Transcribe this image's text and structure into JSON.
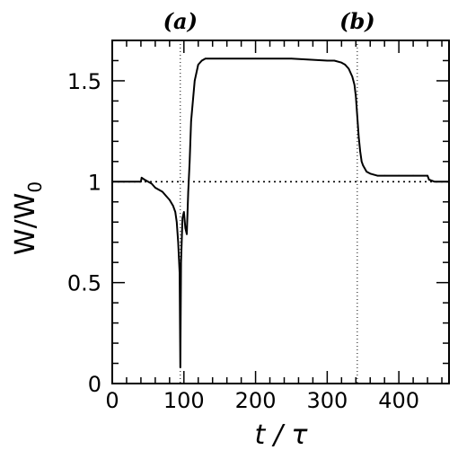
{
  "chart_data": {
    "type": "line",
    "title": "",
    "xlabel": "t / τ",
    "ylabel": "W/W0",
    "ylabel_main": "W/W",
    "ylabel_sub": "0",
    "xlim": [
      0,
      470
    ],
    "ylim": [
      0,
      1.7
    ],
    "x_ticks": [
      0,
      100,
      200,
      300,
      400
    ],
    "x_tick_labels": [
      "0",
      "100",
      "200",
      "300",
      "400"
    ],
    "y_ticks": [
      0,
      0.5,
      1,
      1.5
    ],
    "y_tick_labels": [
      "0",
      "0.5",
      "1",
      "1.5"
    ],
    "grid": false,
    "reference_lines": [
      {
        "orientation": "horizontal",
        "value": 1,
        "style": "dotted"
      },
      {
        "orientation": "vertical",
        "value": 95,
        "style": "dotted"
      },
      {
        "orientation": "vertical",
        "value": 342,
        "style": "dotted"
      }
    ],
    "annotations": [
      {
        "text": "(a)",
        "x": 95
      },
      {
        "text": "(b)",
        "x": 342
      }
    ],
    "series": [
      {
        "x": [
          0,
          40,
          41,
          45,
          50,
          55,
          60,
          65,
          70,
          75,
          80,
          85,
          88,
          90,
          92,
          94,
          95,
          96,
          98,
          100,
          102,
          104,
          106,
          108,
          110,
          115,
          120,
          125,
          130,
          150,
          200,
          250,
          300,
          310,
          320,
          325,
          330,
          335,
          338,
          340,
          342,
          344,
          346,
          348,
          350,
          355,
          360,
          370,
          380,
          400,
          420,
          440,
          442,
          450,
          460,
          470
        ],
        "y": [
          1.0,
          1.0,
          1.02,
          1.01,
          1.0,
          0.99,
          0.97,
          0.96,
          0.95,
          0.93,
          0.91,
          0.88,
          0.85,
          0.8,
          0.7,
          0.55,
          0.08,
          0.6,
          0.82,
          0.85,
          0.77,
          0.74,
          0.95,
          1.1,
          1.3,
          1.5,
          1.58,
          1.6,
          1.61,
          1.61,
          1.61,
          1.61,
          1.6,
          1.6,
          1.59,
          1.58,
          1.56,
          1.52,
          1.48,
          1.42,
          1.32,
          1.22,
          1.15,
          1.1,
          1.08,
          1.05,
          1.04,
          1.03,
          1.03,
          1.03,
          1.03,
          1.03,
          1.01,
          1.0,
          1.0,
          1.0
        ]
      }
    ]
  }
}
